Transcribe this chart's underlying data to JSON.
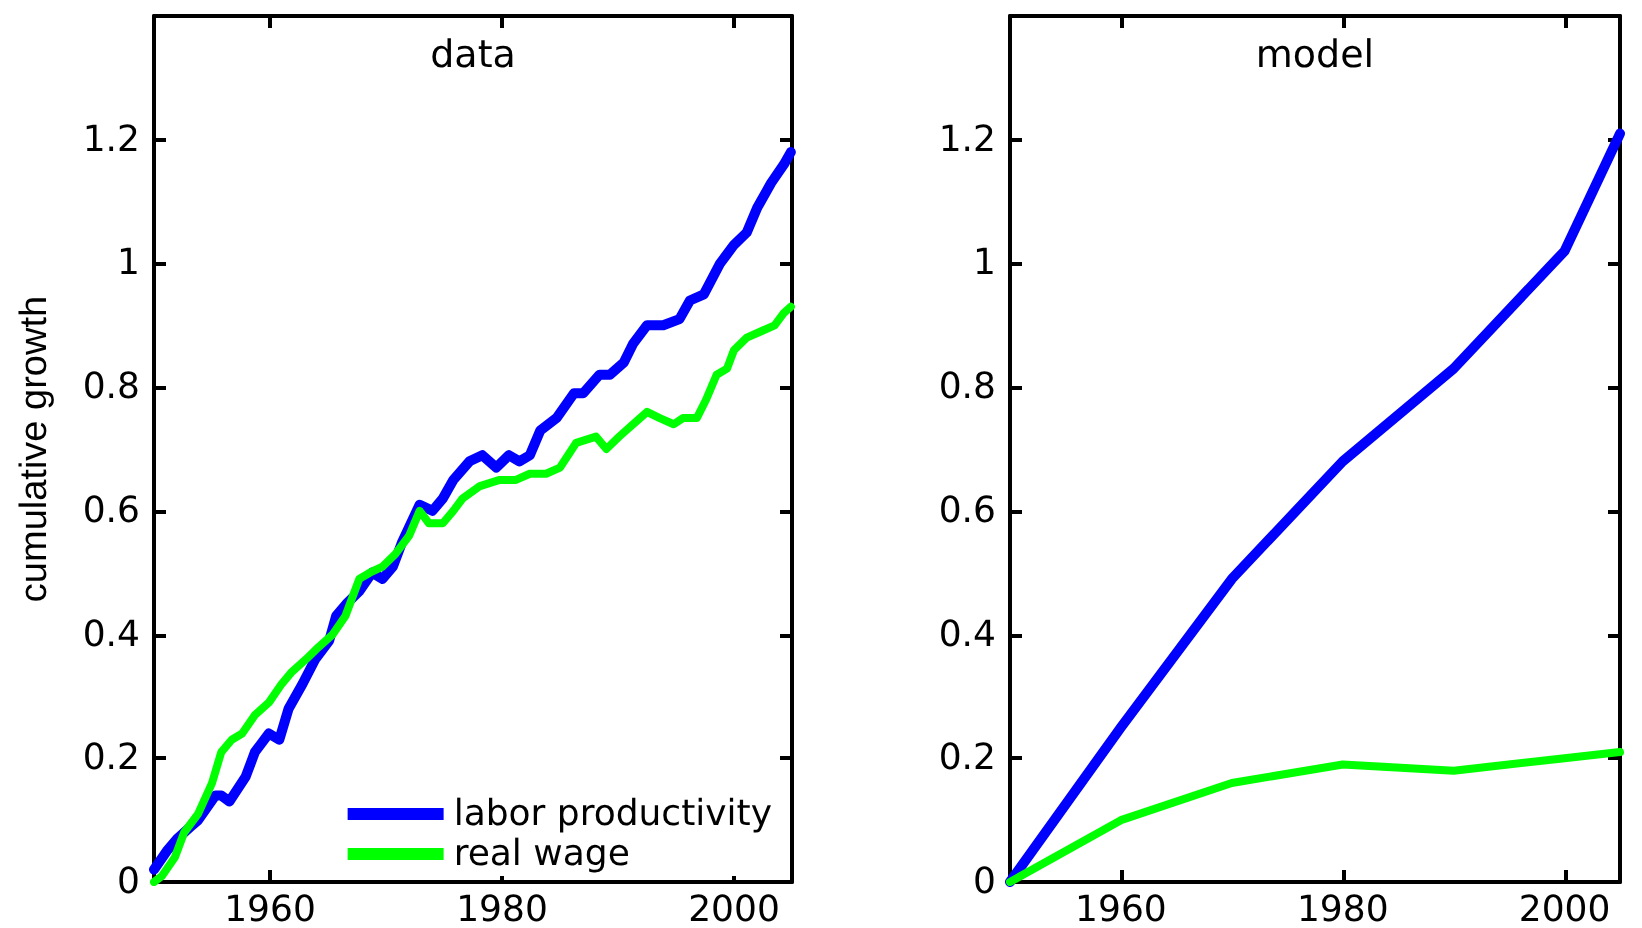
{
  "chart_data": [
    {
      "type": "line",
      "title": "data",
      "ylabel": "cumulative growth",
      "xlim": [
        1950,
        2005
      ],
      "xticks": [
        1960,
        1980,
        2000
      ],
      "ylim": [
        0,
        1.4
      ],
      "yticks": [
        0,
        0.2,
        0.4,
        0.6,
        0.8,
        1,
        1.2
      ],
      "legend": "bottom right",
      "marker": "none",
      "line_style": "solid",
      "series": [
        {
          "name": "labor productivity",
          "color": "#0000ff",
          "x": [
            1950.0,
            1951.1,
            1952.0,
            1953.2,
            1953.8,
            1955.3,
            1955.8,
            1956.5,
            1957.9,
            1958.7,
            1959.9,
            1960.8,
            1961.6,
            1962.8,
            1963.9,
            1965.1,
            1965.7,
            1966.6,
            1967.7,
            1968.8,
            1969.7,
            1970.6,
            1971.4,
            1972.9,
            1974.0,
            1974.9,
            1975.8,
            1977.2,
            1978.3,
            1979.5,
            1980.6,
            1981.5,
            1982.4,
            1983.3,
            1984.7,
            1986.2,
            1987.0,
            1988.4,
            1989.3,
            1990.5,
            1991.3,
            1992.5,
            1993.0,
            1993.9,
            1995.3,
            1996.2,
            1997.4,
            1998.8,
            2000.0,
            2001.1,
            2002.0,
            2003.2,
            2004.3,
            2004.9
          ],
          "values": [
            0.02,
            0.05,
            0.07,
            0.09,
            0.1,
            0.14,
            0.14,
            0.13,
            0.17,
            0.21,
            0.24,
            0.23,
            0.28,
            0.32,
            0.36,
            0.39,
            0.43,
            0.45,
            0.47,
            0.5,
            0.49,
            0.51,
            0.55,
            0.61,
            0.6,
            0.62,
            0.65,
            0.68,
            0.69,
            0.67,
            0.69,
            0.68,
            0.69,
            0.73,
            0.75,
            0.79,
            0.79,
            0.82,
            0.82,
            0.84,
            0.87,
            0.9,
            0.9,
            0.9,
            0.91,
            0.94,
            0.95,
            1.0,
            1.03,
            1.05,
            1.09,
            1.13,
            1.16,
            1.18
          ]
        },
        {
          "name": "real wage",
          "color": "#00ff00",
          "x": [
            1950.0,
            1950.7,
            1951.8,
            1952.6,
            1953.8,
            1955.0,
            1955.8,
            1956.7,
            1957.6,
            1958.7,
            1959.9,
            1961.0,
            1961.9,
            1963.1,
            1964.2,
            1965.4,
            1966.5,
            1967.7,
            1968.6,
            1969.7,
            1970.8,
            1972.0,
            1972.9,
            1973.7,
            1974.9,
            1975.8,
            1976.6,
            1978.1,
            1979.8,
            1981.2,
            1982.4,
            1983.8,
            1985.0,
            1986.4,
            1988.1,
            1989.0,
            1990.1,
            1991.3,
            1992.5,
            1993.6,
            1994.8,
            1995.6,
            1996.8,
            1997.6,
            1998.5,
            1999.4,
            2000.0,
            2001.1,
            2002.3,
            2003.5,
            2004.3,
            2004.9
          ],
          "values": [
            0.0,
            0.01,
            0.04,
            0.08,
            0.11,
            0.16,
            0.21,
            0.23,
            0.24,
            0.27,
            0.29,
            0.32,
            0.34,
            0.36,
            0.38,
            0.4,
            0.43,
            0.49,
            0.5,
            0.51,
            0.53,
            0.56,
            0.6,
            0.58,
            0.58,
            0.6,
            0.62,
            0.64,
            0.65,
            0.65,
            0.66,
            0.66,
            0.67,
            0.71,
            0.72,
            0.7,
            0.72,
            0.74,
            0.76,
            0.75,
            0.74,
            0.75,
            0.75,
            0.78,
            0.82,
            0.83,
            0.86,
            0.88,
            0.89,
            0.9,
            0.92,
            0.93
          ]
        }
      ]
    },
    {
      "type": "line",
      "title": "model",
      "xlim": [
        1950,
        2005
      ],
      "xticks": [
        1960,
        1980,
        2000
      ],
      "ylim": [
        0,
        1.4
      ],
      "yticks": [
        0,
        0.2,
        0.4,
        0.6,
        0.8,
        1,
        1.2
      ],
      "marker": "none",
      "line_style": "solid",
      "series": [
        {
          "color": "#0000ff",
          "x": [
            1950,
            1960,
            1970,
            1980,
            1990,
            2000,
            2005
          ],
          "values": [
            0,
            0.25,
            0.49,
            0.68,
            0.83,
            1.02,
            1.21
          ]
        },
        {
          "color": "#00ff00",
          "x": [
            1950,
            1960,
            1970,
            1980,
            1990,
            2000,
            2005
          ],
          "values": [
            0,
            0.1,
            0.16,
            0.19,
            0.18,
            0.2,
            0.21
          ]
        }
      ]
    }
  ]
}
